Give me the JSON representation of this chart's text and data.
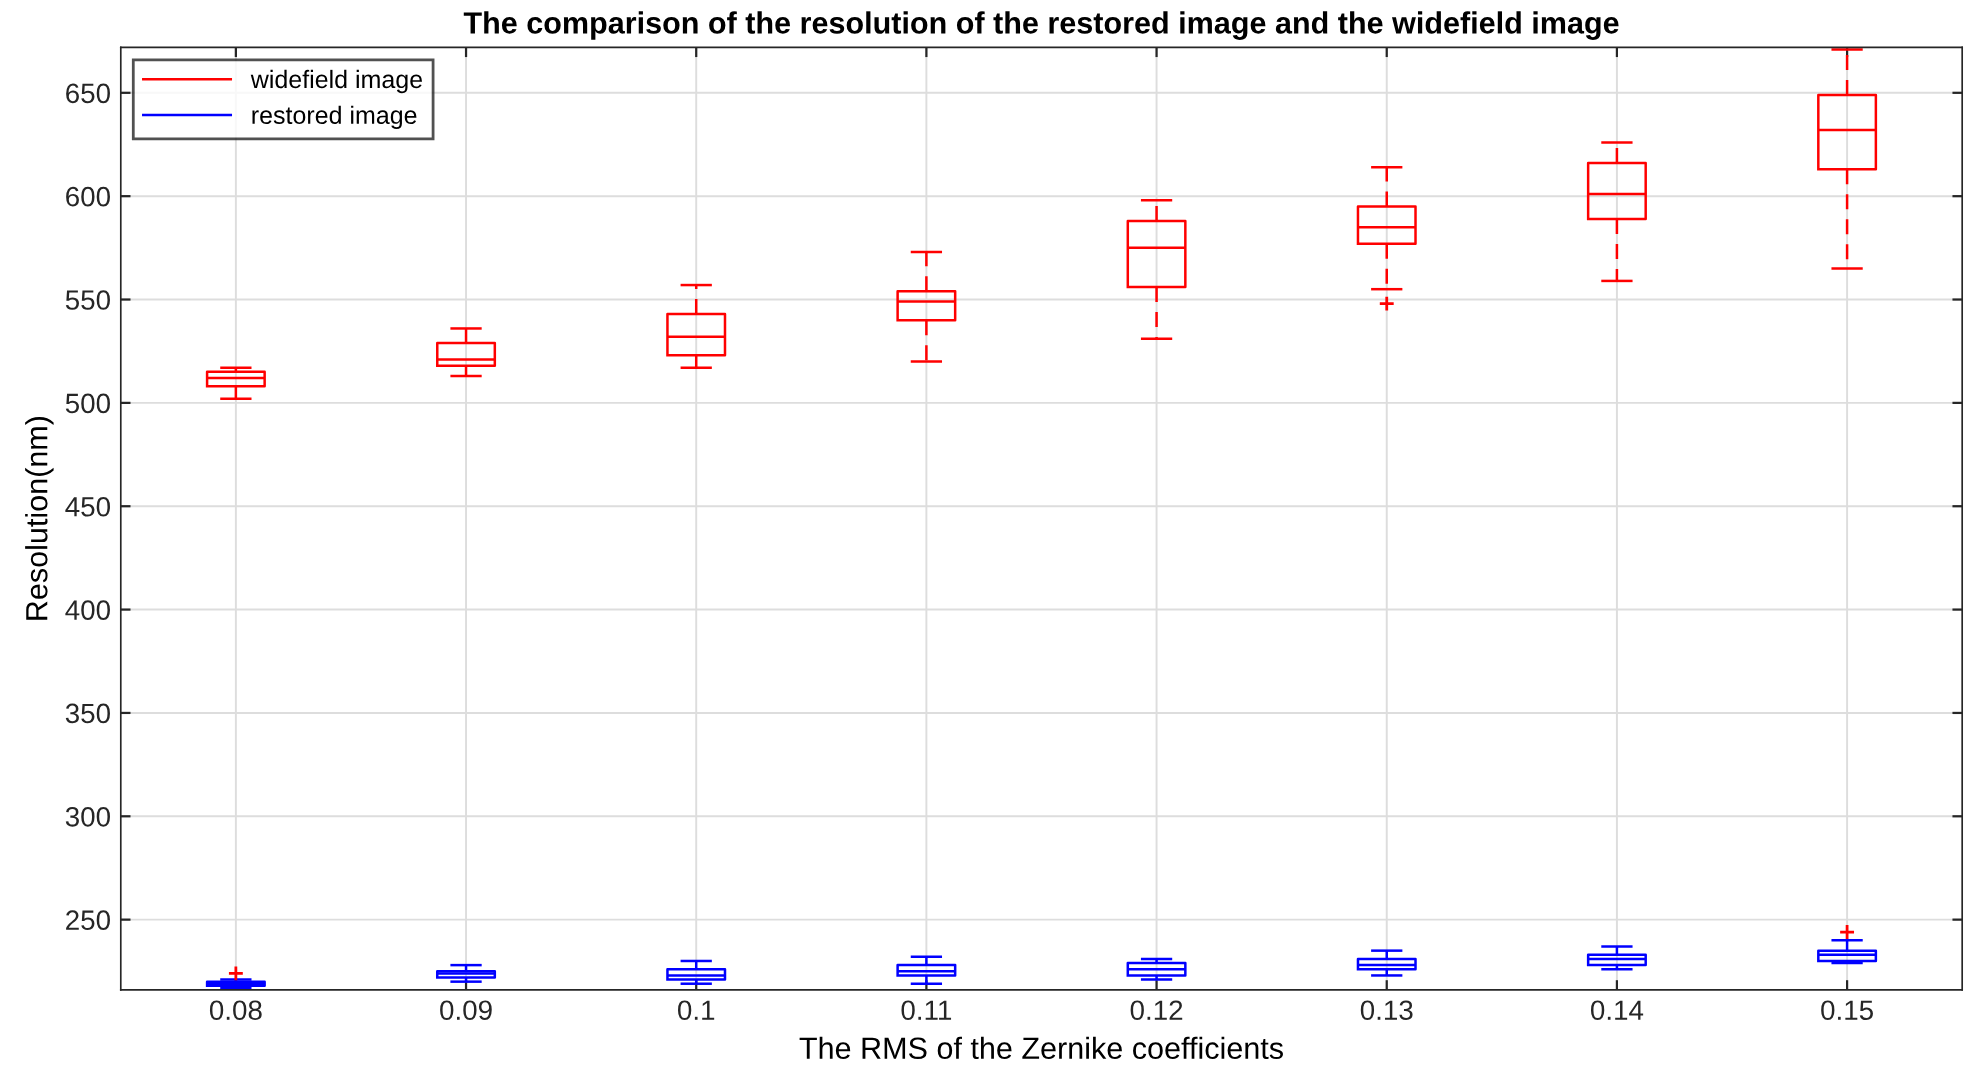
{
  "chart_data": {
    "type": "box",
    "title": "The comparison of the resolution of the restored image and the widefield image",
    "xlabel": "The RMS of the Zernike coefficients",
    "ylabel": "Resolution(nm)",
    "categories": [
      "0.08",
      "0.09",
      "0.1",
      "0.11",
      "0.12",
      "0.13",
      "0.14",
      "0.15"
    ],
    "ylim": [
      216,
      672
    ],
    "yticks": [
      250,
      300,
      350,
      400,
      450,
      500,
      550,
      600,
      650
    ],
    "grid": true,
    "legend": "top left",
    "line_style": "dashed",
    "marker": "cross",
    "series": [
      {
        "name": "widefield image",
        "color": "#ff0000",
        "boxes": [
          {
            "low": 502,
            "q1": 508,
            "median": 512,
            "q3": 515,
            "high": 517
          },
          {
            "low": 513,
            "q1": 518,
            "median": 521,
            "q3": 529,
            "high": 536
          },
          {
            "low": 517,
            "q1": 523,
            "median": 532,
            "q3": 543,
            "high": 557
          },
          {
            "low": 520,
            "q1": 540,
            "median": 549,
            "q3": 554,
            "high": 573
          },
          {
            "low": 531,
            "q1": 556,
            "median": 575,
            "q3": 588,
            "high": 598
          },
          {
            "low": 555,
            "q1": 577,
            "median": 585,
            "q3": 595,
            "high": 614,
            "outliers": [
              548
            ]
          },
          {
            "low": 559,
            "q1": 589,
            "median": 601,
            "q3": 616,
            "high": 626
          },
          {
            "low": 565,
            "q1": 613,
            "median": 632,
            "q3": 649,
            "high": 671
          }
        ]
      },
      {
        "name": "restored image",
        "color": "#0000ff",
        "boxes": [
          {
            "low": 217,
            "q1": 218,
            "median": 219,
            "q3": 220,
            "high": 221,
            "outliers": [
              224
            ]
          },
          {
            "low": 220,
            "q1": 222,
            "median": 224,
            "q3": 225,
            "high": 228
          },
          {
            "low": 219,
            "q1": 221,
            "median": 223,
            "q3": 226,
            "high": 230
          },
          {
            "low": 219,
            "q1": 223,
            "median": 225,
            "q3": 228,
            "high": 232
          },
          {
            "low": 221,
            "q1": 223,
            "median": 226,
            "q3": 229,
            "high": 231
          },
          {
            "low": 223,
            "q1": 226,
            "median": 228,
            "q3": 231,
            "high": 235
          },
          {
            "low": 226,
            "q1": 228,
            "median": 231,
            "q3": 233,
            "high": 237
          },
          {
            "low": 229,
            "q1": 230,
            "median": 233,
            "q3": 235,
            "high": 240,
            "outliers": [
              244
            ]
          }
        ]
      }
    ]
  }
}
